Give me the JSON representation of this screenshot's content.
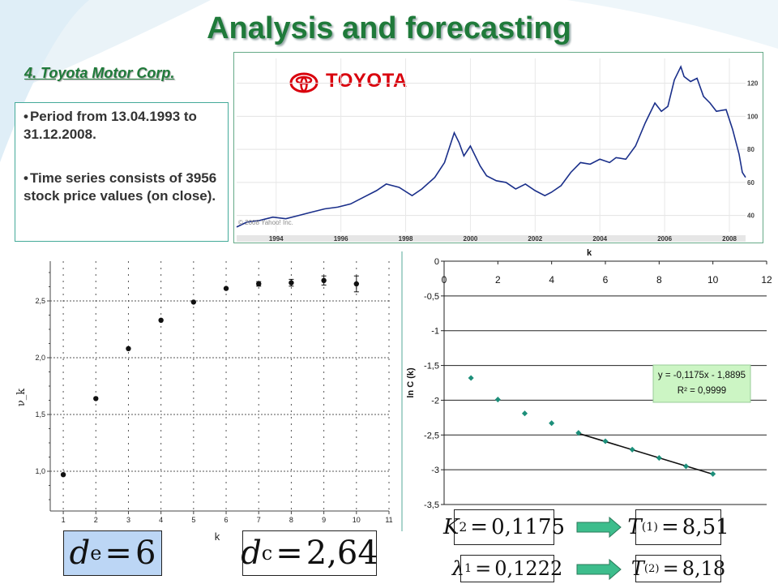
{
  "slide": {
    "title": "Analysis and forecasting",
    "subtitle": "4. Toyota Motor Corp.",
    "bullets": [
      "Period from 13.04.1993 to 31.12.2008.",
      "Time series consists of 3956 stock price values (on close)."
    ],
    "accent_color": "#1f7a3a"
  },
  "stock_chart": {
    "logo_text": "TOYOTA",
    "logo_color": "#d9000d",
    "copyright": "© 2008 Yahoo! Inc.",
    "x_ticks": [
      "1994",
      "1996",
      "1998",
      "2000",
      "2002",
      "2004",
      "2006",
      "2008"
    ],
    "y_ticks": [
      "120",
      "100",
      "80",
      "60",
      "40"
    ]
  },
  "chart_data": [
    {
      "type": "line",
      "title": "",
      "xlabel": "",
      "ylabel": "",
      "x_range": [
        1993.28,
        2009.0
      ],
      "ylim": [
        30,
        135
      ],
      "series": [
        {
          "color": "#1a2f8a",
          "x": [
            1993.28,
            1993.6,
            1994.0,
            1994.4,
            1994.8,
            1995.2,
            1995.6,
            1996.0,
            1996.4,
            1996.8,
            1997.2,
            1997.6,
            1997.9,
            1998.3,
            1998.7,
            1999.0,
            1999.4,
            1999.7,
            2000.0,
            2000.15,
            2000.3,
            2000.5,
            2000.8,
            2001.0,
            2001.3,
            2001.6,
            2001.9,
            2002.2,
            2002.5,
            2002.8,
            2003.0,
            2003.3,
            2003.6,
            2003.9,
            2004.2,
            2004.5,
            2004.8,
            2005.0,
            2005.3,
            2005.6,
            2005.9,
            2006.2,
            2006.4,
            2006.6,
            2006.8,
            2007.0,
            2007.1,
            2007.3,
            2007.5,
            2007.7,
            2007.9,
            2008.1,
            2008.4,
            2008.6,
            2008.8,
            2008.9,
            2009.0
          ],
          "y": [
            33,
            36,
            37,
            39,
            38,
            40,
            42,
            44,
            45,
            47,
            51,
            55,
            59,
            57,
            52,
            56,
            63,
            72,
            90,
            84,
            76,
            82,
            70,
            64,
            61,
            60,
            56,
            59,
            55,
            52,
            54,
            58,
            66,
            72,
            71,
            74,
            72,
            75,
            74,
            82,
            96,
            108,
            103,
            106,
            122,
            130,
            124,
            121,
            123,
            112,
            108,
            103,
            104,
            92,
            77,
            66,
            63
          ]
        }
      ]
    },
    {
      "type": "scatter",
      "title": "",
      "xlabel": "k",
      "ylabel": "ν_k",
      "xlim": [
        0.6,
        11
      ],
      "ylim": [
        0.65,
        2.85
      ],
      "x_ticks": [
        "1",
        "2",
        "3",
        "4",
        "5",
        "6",
        "7",
        "8",
        "9",
        "10",
        "11"
      ],
      "y_ticks": [
        "1,0",
        "1,5",
        "2,0",
        "2,5"
      ],
      "grid": true,
      "series": [
        {
          "x": [
            1,
            2,
            3,
            4,
            5,
            6,
            7,
            8,
            9,
            10
          ],
          "y": [
            0.97,
            1.64,
            2.08,
            2.33,
            2.49,
            2.61,
            2.65,
            2.66,
            2.68,
            2.65
          ],
          "error": [
            0,
            0,
            0,
            0,
            0,
            0,
            0.02,
            0.03,
            0.04,
            0.07
          ]
        }
      ]
    },
    {
      "type": "scatter",
      "title": "",
      "xlabel": "k",
      "ylabel": "ln C (k)",
      "xlim": [
        0,
        12
      ],
      "ylim": [
        -3.5,
        0
      ],
      "x_ticks": [
        "0",
        "2",
        "4",
        "6",
        "8",
        "10",
        "12"
      ],
      "y_ticks": [
        "0",
        "-0,5",
        "-1",
        "-1,5",
        "-2",
        "-2,5",
        "-3",
        "-3,5"
      ],
      "grid": true,
      "series": [
        {
          "x": [
            1,
            2,
            3,
            4,
            5,
            6,
            7,
            8,
            9,
            10
          ],
          "y": [
            -1.68,
            -1.99,
            -2.19,
            -2.33,
            -2.47,
            -2.59,
            -2.71,
            -2.83,
            -2.95,
            -3.06
          ],
          "color": "#1d8f7a"
        }
      ],
      "trendline": {
        "x": [
          5,
          10
        ],
        "slope": -0.1175,
        "intercept": -1.8895
      },
      "annotations": [
        "y = -0,1175x - 1,8895",
        "R² = 0,9999"
      ]
    }
  ],
  "formulas": {
    "de": {
      "symbol": "d",
      "sub": "e",
      "value": "6"
    },
    "dc": {
      "symbol": "d",
      "sub": "c",
      "value": "2,64"
    },
    "K2": {
      "symbol": "K",
      "sub": "2",
      "value": "0,1175"
    },
    "T1": {
      "symbol": "T",
      "sup": "(1)",
      "value": "8,51"
    },
    "lambda1": {
      "symbol": "λ",
      "sub": "1",
      "value": "0,1222"
    },
    "T2": {
      "symbol": "T",
      "sup": "(2)",
      "value": "8,18"
    }
  }
}
